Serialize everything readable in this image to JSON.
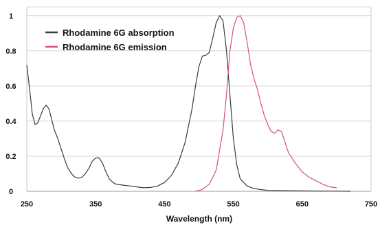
{
  "chart_data": {
    "type": "line",
    "xlabel": "Wavelength (nm)",
    "ylabel": "",
    "xlim": [
      250,
      750
    ],
    "ylim": [
      0,
      1.05
    ],
    "x_ticks": [
      250,
      350,
      450,
      550,
      650,
      750
    ],
    "y_ticks": [
      0,
      0.2,
      0.4,
      0.6,
      0.8,
      1
    ],
    "x_tick_labels": [
      "250",
      "350",
      "450",
      "550",
      "650",
      "750"
    ],
    "y_tick_labels": [
      "0",
      "0.2",
      "0.4",
      "0.6",
      "0.8",
      "1"
    ],
    "grid": "horizontal",
    "legend_position": "top-left",
    "series": [
      {
        "name": "Rhodamine 6G absorption",
        "color": "#3a3a3a",
        "points": [
          [
            250,
            0.72
          ],
          [
            255,
            0.55
          ],
          [
            258,
            0.44
          ],
          [
            262,
            0.38
          ],
          [
            266,
            0.39
          ],
          [
            270,
            0.43
          ],
          [
            274,
            0.47
          ],
          [
            278,
            0.49
          ],
          [
            282,
            0.47
          ],
          [
            286,
            0.41
          ],
          [
            290,
            0.35
          ],
          [
            295,
            0.3
          ],
          [
            300,
            0.24
          ],
          [
            305,
            0.18
          ],
          [
            310,
            0.13
          ],
          [
            315,
            0.1
          ],
          [
            320,
            0.08
          ],
          [
            325,
            0.075
          ],
          [
            330,
            0.08
          ],
          [
            335,
            0.1
          ],
          [
            340,
            0.13
          ],
          [
            345,
            0.17
          ],
          [
            350,
            0.19
          ],
          [
            355,
            0.19
          ],
          [
            360,
            0.16
          ],
          [
            365,
            0.11
          ],
          [
            370,
            0.07
          ],
          [
            375,
            0.05
          ],
          [
            380,
            0.04
          ],
          [
            390,
            0.035
          ],
          [
            400,
            0.03
          ],
          [
            410,
            0.025
          ],
          [
            420,
            0.02
          ],
          [
            430,
            0.022
          ],
          [
            440,
            0.03
          ],
          [
            450,
            0.05
          ],
          [
            460,
            0.09
          ],
          [
            470,
            0.16
          ],
          [
            480,
            0.28
          ],
          [
            490,
            0.47
          ],
          [
            495,
            0.6
          ],
          [
            500,
            0.71
          ],
          [
            505,
            0.77
          ],
          [
            510,
            0.775
          ],
          [
            515,
            0.79
          ],
          [
            520,
            0.87
          ],
          [
            525,
            0.96
          ],
          [
            530,
            1.0
          ],
          [
            535,
            0.97
          ],
          [
            540,
            0.8
          ],
          [
            545,
            0.55
          ],
          [
            550,
            0.3
          ],
          [
            555,
            0.15
          ],
          [
            560,
            0.07
          ],
          [
            570,
            0.03
          ],
          [
            580,
            0.015
          ],
          [
            600,
            0.005
          ],
          [
            650,
            0.002
          ],
          [
            700,
            0.001
          ],
          [
            720,
            0.0
          ]
        ]
      },
      {
        "name": "Rhodamine 6G emission",
        "color": "#d6507a",
        "points": [
          [
            495,
            0.0
          ],
          [
            505,
            0.01
          ],
          [
            515,
            0.04
          ],
          [
            525,
            0.12
          ],
          [
            535,
            0.35
          ],
          [
            540,
            0.55
          ],
          [
            545,
            0.8
          ],
          [
            550,
            0.93
          ],
          [
            555,
            0.99
          ],
          [
            560,
            1.0
          ],
          [
            565,
            0.96
          ],
          [
            570,
            0.85
          ],
          [
            575,
            0.72
          ],
          [
            580,
            0.64
          ],
          [
            585,
            0.58
          ],
          [
            590,
            0.5
          ],
          [
            595,
            0.43
          ],
          [
            600,
            0.38
          ],
          [
            605,
            0.34
          ],
          [
            610,
            0.33
          ],
          [
            615,
            0.35
          ],
          [
            620,
            0.34
          ],
          [
            625,
            0.28
          ],
          [
            630,
            0.22
          ],
          [
            640,
            0.16
          ],
          [
            650,
            0.11
          ],
          [
            660,
            0.08
          ],
          [
            670,
            0.06
          ],
          [
            680,
            0.04
          ],
          [
            690,
            0.025
          ],
          [
            700,
            0.02
          ]
        ]
      }
    ]
  }
}
